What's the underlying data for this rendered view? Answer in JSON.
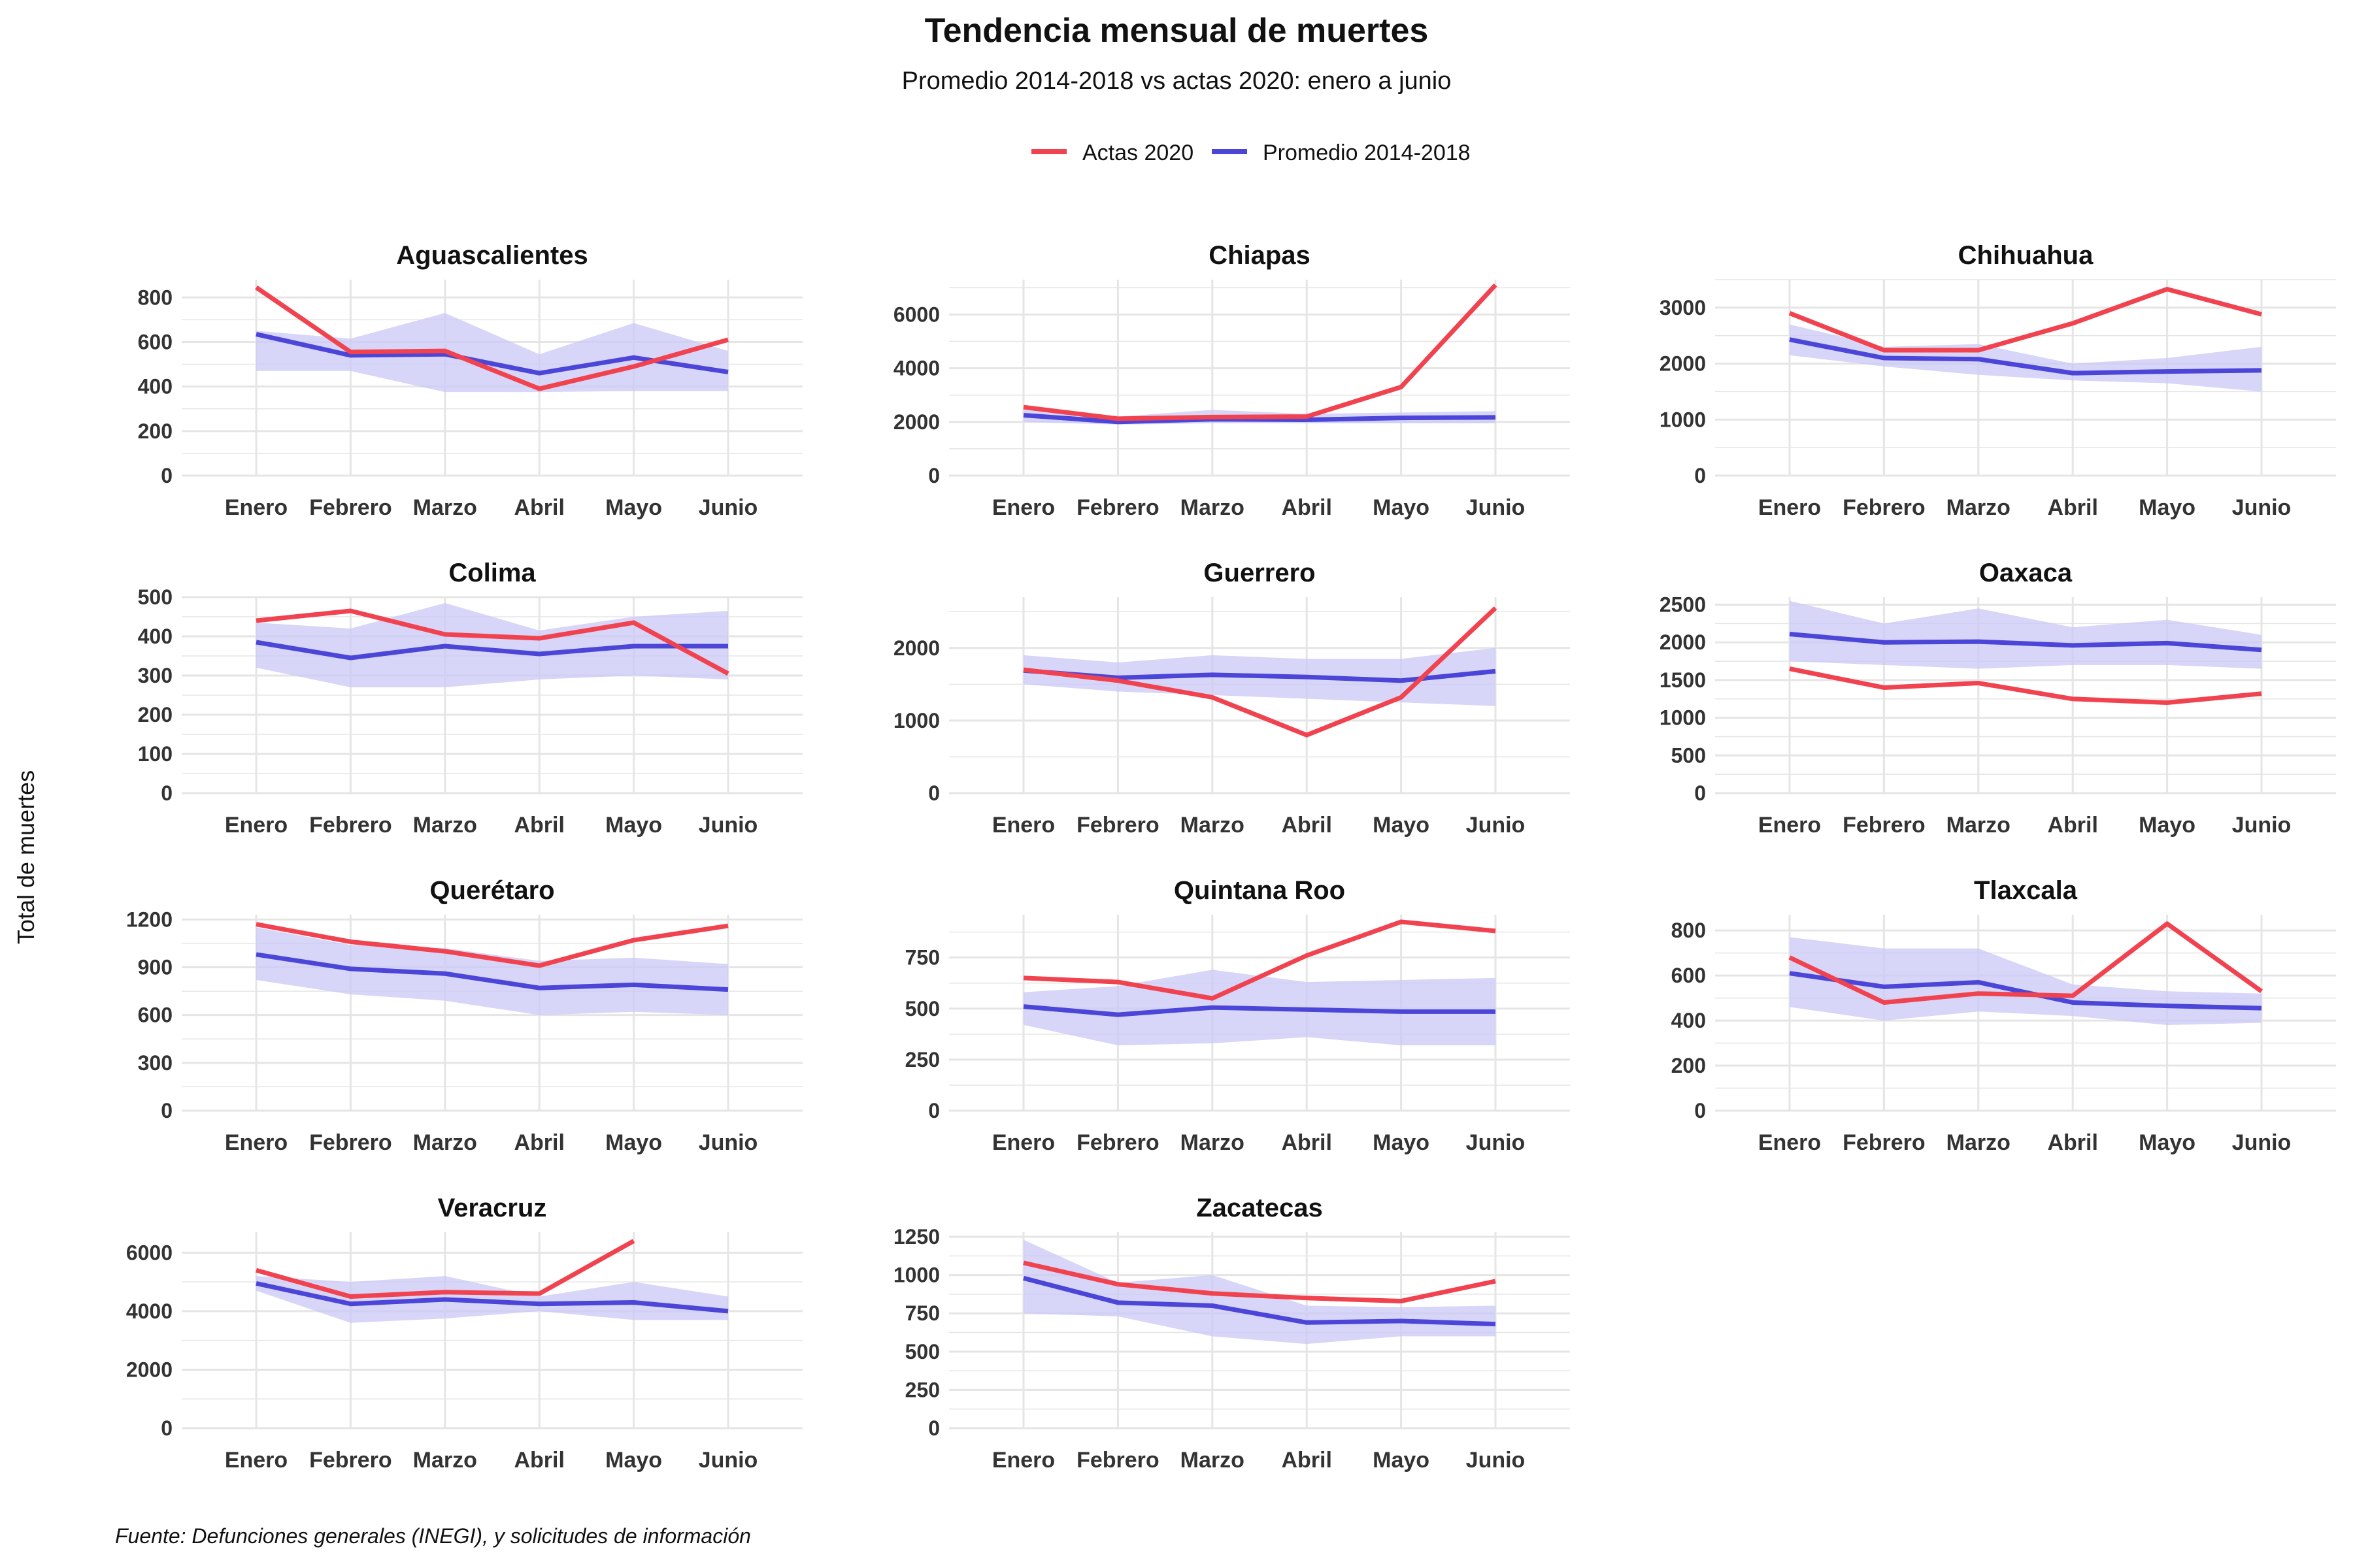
{
  "header": {
    "title": "Tendencia mensual de muertes",
    "subtitle": "Promedio 2014-2018 vs actas 2020: enero a junio"
  },
  "caption": "Fuente: Defunciones generales (INEGI), y solicitudes de información",
  "y_axis_label": "Total de muertes",
  "colors": {
    "actas": "#F0434F",
    "promedio": "#4B45D8",
    "band": "#C9C7F5",
    "grid": "#E5E5E5"
  },
  "chart_data": {
    "type": "line",
    "x_categories": [
      "Enero",
      "Febrero",
      "Marzo",
      "Abril",
      "Mayo",
      "Junio"
    ],
    "legend": [
      {
        "key": "actas",
        "label": "Actas 2020"
      },
      {
        "key": "promedio",
        "label": "Promedio 2014-2018"
      }
    ],
    "legend_position": "top",
    "panels": [
      {
        "title": "Aguascalientes",
        "ylim": [
          0,
          880
        ],
        "yticks": [
          0,
          200,
          400,
          600,
          800
        ],
        "actas": [
          845,
          555,
          560,
          390,
          490,
          610
        ],
        "promedio": [
          635,
          540,
          545,
          460,
          530,
          465
        ],
        "band_low": [
          470,
          470,
          375,
          375,
          380,
          380
        ],
        "band_high": [
          650,
          615,
          730,
          545,
          685,
          560
        ]
      },
      {
        "title": "Chiapas",
        "ylim": [
          0,
          7300
        ],
        "yticks": [
          0,
          2000,
          4000,
          6000
        ],
        "actas": [
          2550,
          2120,
          2180,
          2200,
          3300,
          7100
        ],
        "promedio": [
          2250,
          2000,
          2100,
          2080,
          2150,
          2170
        ],
        "band_low": [
          2000,
          1900,
          1950,
          1950,
          1950,
          1950
        ],
        "band_high": [
          2450,
          2200,
          2450,
          2300,
          2350,
          2400
        ]
      },
      {
        "title": "Chihuahua",
        "ylim": [
          0,
          3500
        ],
        "yticks": [
          0,
          1000,
          2000,
          3000
        ],
        "actas": [
          2900,
          2240,
          2240,
          2720,
          3330,
          2880
        ],
        "promedio": [
          2430,
          2100,
          2080,
          1830,
          1860,
          1880
        ],
        "band_low": [
          2150,
          1950,
          1800,
          1700,
          1650,
          1500
        ],
        "band_high": [
          2700,
          2300,
          2350,
          2000,
          2100,
          2300
        ]
      },
      {
        "title": "Colima",
        "ylim": [
          0,
          500
        ],
        "yticks": [
          0,
          100,
          200,
          300,
          400,
          500
        ],
        "actas": [
          440,
          465,
          405,
          395,
          435,
          305
        ],
        "promedio": [
          385,
          345,
          375,
          355,
          375,
          375
        ],
        "band_low": [
          320,
          270,
          270,
          290,
          300,
          290
        ],
        "band_high": [
          435,
          420,
          485,
          415,
          450,
          465
        ]
      },
      {
        "title": "Guerrero",
        "ylim": [
          0,
          2700
        ],
        "yticks": [
          0,
          1000,
          2000
        ],
        "actas": [
          1700,
          1550,
          1320,
          800,
          1320,
          2550
        ],
        "promedio": [
          1690,
          1590,
          1630,
          1600,
          1550,
          1680
        ],
        "band_low": [
          1500,
          1400,
          1350,
          1300,
          1250,
          1200
        ],
        "band_high": [
          1900,
          1800,
          1900,
          1850,
          1850,
          2000
        ]
      },
      {
        "title": "Oaxaca",
        "ylim": [
          0,
          2600
        ],
        "yticks": [
          0,
          500,
          1000,
          1500,
          2000,
          2500
        ],
        "actas": [
          1650,
          1400,
          1460,
          1250,
          1200,
          1320
        ],
        "promedio": [
          2110,
          2000,
          2010,
          1960,
          1990,
          1900
        ],
        "band_low": [
          1750,
          1700,
          1650,
          1700,
          1700,
          1650
        ],
        "band_high": [
          2550,
          2250,
          2450,
          2200,
          2300,
          2100
        ]
      },
      {
        "title": "Querétaro",
        "ylim": [
          0,
          1230
        ],
        "yticks": [
          0,
          300,
          600,
          900,
          1200
        ],
        "actas": [
          1170,
          1060,
          1000,
          910,
          1070,
          1160
        ],
        "promedio": [
          980,
          890,
          860,
          770,
          790,
          760
        ],
        "band_low": [
          820,
          730,
          690,
          600,
          620,
          600
        ],
        "band_high": [
          1150,
          1040,
          1020,
          940,
          960,
          920
        ]
      },
      {
        "title": "Quintana Roo",
        "ylim": [
          0,
          960
        ],
        "yticks": [
          0,
          250,
          500,
          750
        ],
        "actas": [
          650,
          630,
          550,
          760,
          925,
          880
        ],
        "promedio": [
          510,
          470,
          505,
          495,
          485,
          485
        ],
        "band_low": [
          420,
          320,
          330,
          360,
          320,
          320
        ],
        "band_high": [
          580,
          610,
          690,
          630,
          640,
          650
        ]
      },
      {
        "title": "Tlaxcala",
        "ylim": [
          0,
          870
        ],
        "yticks": [
          0,
          200,
          400,
          600,
          800
        ],
        "actas": [
          680,
          480,
          520,
          510,
          830,
          530
        ],
        "promedio": [
          610,
          550,
          570,
          480,
          465,
          455
        ],
        "band_low": [
          460,
          400,
          440,
          420,
          380,
          390
        ],
        "band_high": [
          770,
          720,
          720,
          560,
          530,
          520
        ]
      },
      {
        "title": "Veracruz",
        "ylim": [
          0,
          6700
        ],
        "yticks": [
          0,
          2000,
          4000,
          6000
        ],
        "actas": [
          5400,
          4500,
          4650,
          4600,
          6400,
          null
        ],
        "promedio": [
          4950,
          4250,
          4400,
          4250,
          4300,
          4000
        ],
        "band_low": [
          4700,
          3600,
          3750,
          4000,
          3700,
          3700
        ],
        "band_high": [
          5200,
          5000,
          5200,
          4500,
          5000,
          4500
        ]
      },
      {
        "title": "Zacatecas",
        "ylim": [
          0,
          1280
        ],
        "yticks": [
          0,
          250,
          500,
          750,
          1000,
          1250
        ],
        "actas": [
          1080,
          940,
          880,
          850,
          830,
          960
        ],
        "promedio": [
          980,
          820,
          800,
          690,
          700,
          680
        ],
        "band_low": [
          750,
          730,
          600,
          550,
          600,
          600
        ],
        "band_high": [
          1230,
          950,
          1000,
          800,
          790,
          800
        ]
      }
    ]
  }
}
